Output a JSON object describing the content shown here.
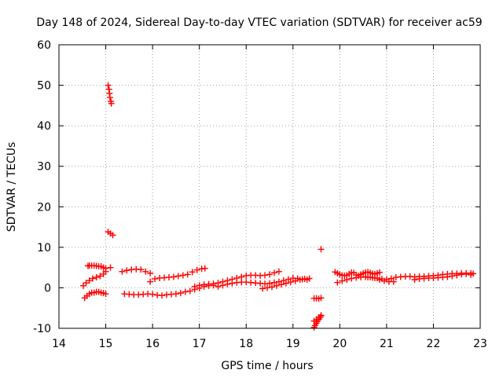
{
  "chart_data": {
    "type": "scatter",
    "title": "Day 148 of 2024, Sidereal Day-to-day VTEC variation (SDTVAR) for receiver ac59",
    "xlabel": "GPS time / hours",
    "ylabel": "SDTVAR / TECUs",
    "xlim": [
      14,
      23
    ],
    "ylim": [
      -10,
      60
    ],
    "xticks": [
      "14",
      "15",
      "16",
      "17",
      "18",
      "19",
      "20",
      "21",
      "22",
      "23"
    ],
    "yticks": [
      "-10",
      "0",
      "10",
      "20",
      "30",
      "40",
      "50",
      "60"
    ],
    "grid": true,
    "marker": "+",
    "color": "#ff0000",
    "series": [
      {
        "name": "sdtvar",
        "points": [
          [
            15.05,
            50.0
          ],
          [
            15.07,
            49.0
          ],
          [
            15.08,
            48.0
          ],
          [
            15.09,
            47.0
          ],
          [
            15.11,
            46.0
          ],
          [
            15.12,
            45.5
          ],
          [
            15.05,
            13.8
          ],
          [
            15.1,
            13.4
          ],
          [
            15.15,
            13.0
          ],
          [
            14.62,
            5.4
          ],
          [
            14.65,
            5.5
          ],
          [
            14.7,
            5.5
          ],
          [
            14.75,
            5.5
          ],
          [
            14.8,
            5.4
          ],
          [
            14.85,
            5.3
          ],
          [
            14.9,
            5.3
          ],
          [
            14.95,
            5.0
          ],
          [
            15.0,
            4.8
          ],
          [
            14.52,
            0.5
          ],
          [
            14.58,
            1.2
          ],
          [
            14.65,
            1.8
          ],
          [
            14.72,
            2.3
          ],
          [
            14.8,
            2.6
          ],
          [
            14.88,
            2.9
          ],
          [
            14.95,
            3.4
          ],
          [
            15.0,
            4.0
          ],
          [
            14.55,
            -2.5
          ],
          [
            14.6,
            -2.0
          ],
          [
            14.65,
            -1.5
          ],
          [
            14.7,
            -1.2
          ],
          [
            14.75,
            -1.2
          ],
          [
            14.8,
            -1.0
          ],
          [
            14.85,
            -1.0
          ],
          [
            14.9,
            -1.2
          ],
          [
            14.95,
            -1.3
          ],
          [
            15.0,
            -1.5
          ],
          [
            15.1,
            5.0
          ],
          [
            15.35,
            4.0
          ],
          [
            15.45,
            4.3
          ],
          [
            15.55,
            4.5
          ],
          [
            15.65,
            4.6
          ],
          [
            15.75,
            4.5
          ],
          [
            15.85,
            4.0
          ],
          [
            15.95,
            3.6
          ],
          [
            15.95,
            1.5
          ],
          [
            16.05,
            2.2
          ],
          [
            16.15,
            2.4
          ],
          [
            16.25,
            2.5
          ],
          [
            16.35,
            2.6
          ],
          [
            16.45,
            2.7
          ],
          [
            16.55,
            2.9
          ],
          [
            16.65,
            3.1
          ],
          [
            16.75,
            3.3
          ],
          [
            16.85,
            3.9
          ],
          [
            16.95,
            4.4
          ],
          [
            17.05,
            4.7
          ],
          [
            17.12,
            4.8
          ],
          [
            15.4,
            -1.5
          ],
          [
            15.5,
            -1.6
          ],
          [
            15.6,
            -1.7
          ],
          [
            15.7,
            -1.7
          ],
          [
            15.8,
            -1.6
          ],
          [
            15.9,
            -1.5
          ],
          [
            16.0,
            -1.6
          ],
          [
            16.1,
            -1.8
          ],
          [
            16.2,
            -1.9
          ],
          [
            16.3,
            -1.7
          ],
          [
            16.4,
            -1.6
          ],
          [
            16.5,
            -1.5
          ],
          [
            16.6,
            -1.3
          ],
          [
            16.7,
            -1.0
          ],
          [
            16.8,
            -0.8
          ],
          [
            16.9,
            -0.4
          ],
          [
            17.0,
            -0.1
          ],
          [
            17.1,
            0.3
          ],
          [
            17.2,
            0.5
          ],
          [
            17.3,
            0.6
          ],
          [
            16.9,
            0.3
          ],
          [
            17.0,
            0.6
          ],
          [
            17.1,
            0.8
          ],
          [
            17.2,
            0.9
          ],
          [
            17.3,
            1.0
          ],
          [
            17.4,
            1.2
          ],
          [
            17.5,
            1.5
          ],
          [
            17.6,
            1.8
          ],
          [
            17.7,
            2.1
          ],
          [
            17.8,
            2.4
          ],
          [
            17.9,
            2.7
          ],
          [
            18.0,
            3.0
          ],
          [
            18.1,
            3.1
          ],
          [
            18.2,
            3.1
          ],
          [
            18.3,
            3.0
          ],
          [
            18.4,
            3.1
          ],
          [
            18.5,
            3.3
          ],
          [
            18.6,
            3.7
          ],
          [
            18.7,
            4.0
          ],
          [
            17.4,
            0.3
          ],
          [
            17.5,
            0.6
          ],
          [
            17.6,
            0.9
          ],
          [
            17.7,
            1.1
          ],
          [
            17.8,
            1.3
          ],
          [
            17.9,
            1.4
          ],
          [
            18.0,
            1.4
          ],
          [
            18.1,
            1.3
          ],
          [
            18.2,
            1.2
          ],
          [
            18.3,
            1.1
          ],
          [
            18.4,
            1.0
          ],
          [
            18.5,
            1.1
          ],
          [
            18.6,
            1.3
          ],
          [
            18.7,
            1.5
          ],
          [
            18.8,
            1.8
          ],
          [
            18.9,
            2.1
          ],
          [
            19.0,
            2.4
          ],
          [
            19.1,
            2.3
          ],
          [
            19.2,
            2.1
          ],
          [
            19.3,
            2.0
          ],
          [
            18.35,
            -0.2
          ],
          [
            18.45,
            0.0
          ],
          [
            18.55,
            0.2
          ],
          [
            18.65,
            0.5
          ],
          [
            18.75,
            0.8
          ],
          [
            18.85,
            1.1
          ],
          [
            18.95,
            1.4
          ],
          [
            19.05,
            1.7
          ],
          [
            19.15,
            2.0
          ],
          [
            19.25,
            2.2
          ],
          [
            19.35,
            2.3
          ],
          [
            19.45,
            -2.6
          ],
          [
            19.5,
            -2.6
          ],
          [
            19.55,
            -2.7
          ],
          [
            19.6,
            -2.5
          ],
          [
            19.45,
            -9.8
          ],
          [
            19.47,
            -9.3
          ],
          [
            19.5,
            -8.8
          ],
          [
            19.52,
            -8.3
          ],
          [
            19.55,
            -7.8
          ],
          [
            19.58,
            -7.3
          ],
          [
            19.6,
            -6.9
          ],
          [
            19.45,
            -8.2
          ],
          [
            19.5,
            -7.8
          ],
          [
            19.55,
            -7.3
          ],
          [
            19.6,
            -6.8
          ],
          [
            19.6,
            9.5
          ],
          [
            19.9,
            3.9
          ],
          [
            19.95,
            3.6
          ],
          [
            20.0,
            3.3
          ],
          [
            20.05,
            3.1
          ],
          [
            20.1,
            3.0
          ],
          [
            20.15,
            3.1
          ],
          [
            20.2,
            3.4
          ],
          [
            20.25,
            3.8
          ],
          [
            20.3,
            3.7
          ],
          [
            20.35,
            3.2
          ],
          [
            20.4,
            3.0
          ],
          [
            20.45,
            3.3
          ],
          [
            20.5,
            3.6
          ],
          [
            20.55,
            3.8
          ],
          [
            20.6,
            3.9
          ],
          [
            20.65,
            3.7
          ],
          [
            20.7,
            3.5
          ],
          [
            20.75,
            3.4
          ],
          [
            20.8,
            3.6
          ],
          [
            20.85,
            3.8
          ],
          [
            19.95,
            1.3
          ],
          [
            20.05,
            1.7
          ],
          [
            20.15,
            2.0
          ],
          [
            20.25,
            2.3
          ],
          [
            20.35,
            2.5
          ],
          [
            20.45,
            2.6
          ],
          [
            20.55,
            2.7
          ],
          [
            20.65,
            2.6
          ],
          [
            20.75,
            2.4
          ],
          [
            20.85,
            2.0
          ],
          [
            20.95,
            1.7
          ],
          [
            21.05,
            1.5
          ],
          [
            21.15,
            1.5
          ],
          [
            20.6,
            2.6
          ],
          [
            20.7,
            2.5
          ],
          [
            20.8,
            2.4
          ],
          [
            20.9,
            2.2
          ],
          [
            21.0,
            2.1
          ],
          [
            21.1,
            2.3
          ],
          [
            21.2,
            2.6
          ],
          [
            21.3,
            2.7
          ],
          [
            21.4,
            2.8
          ],
          [
            21.5,
            2.8
          ],
          [
            21.6,
            2.7
          ],
          [
            21.7,
            2.8
          ],
          [
            21.8,
            2.8
          ],
          [
            21.9,
            2.9
          ],
          [
            22.0,
            3.0
          ],
          [
            22.1,
            3.1
          ],
          [
            22.2,
            3.3
          ],
          [
            22.3,
            3.4
          ],
          [
            22.4,
            3.5
          ],
          [
            22.5,
            3.5
          ],
          [
            22.6,
            3.6
          ],
          [
            22.7,
            3.6
          ],
          [
            22.8,
            3.6
          ],
          [
            21.6,
            2.0
          ],
          [
            21.7,
            2.2
          ],
          [
            21.8,
            2.3
          ],
          [
            21.9,
            2.4
          ],
          [
            22.0,
            2.4
          ],
          [
            22.1,
            2.5
          ],
          [
            22.2,
            2.6
          ],
          [
            22.3,
            2.7
          ],
          [
            22.4,
            2.9
          ],
          [
            22.5,
            3.1
          ],
          [
            22.6,
            3.3
          ],
          [
            22.7,
            3.4
          ],
          [
            22.8,
            3.2
          ],
          [
            22.85,
            3.5
          ]
        ]
      }
    ]
  }
}
